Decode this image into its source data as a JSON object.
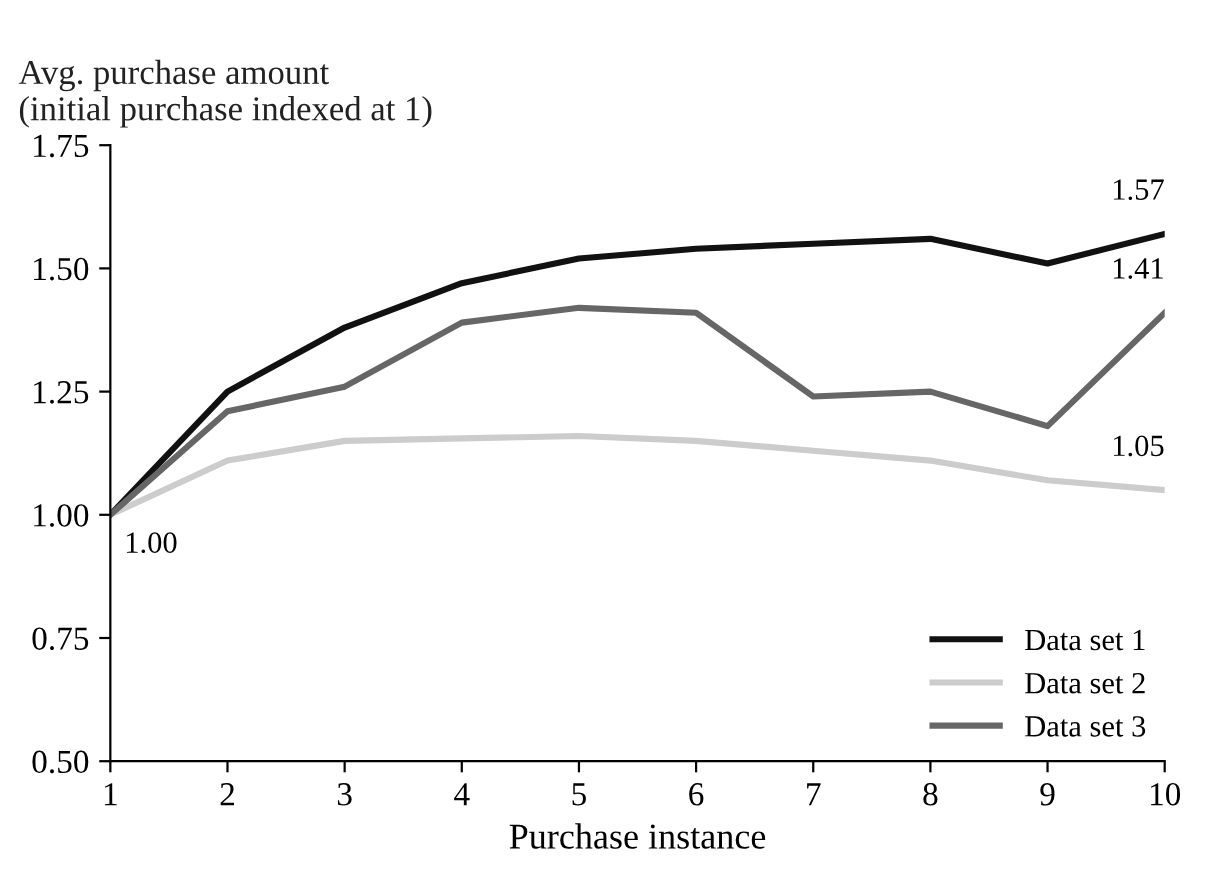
{
  "chart_data": {
    "type": "line",
    "ylabel": "Avg. purchase amount\n(initial purchase indexed at 1)",
    "xlabel": "Purchase instance",
    "x": [
      1,
      2,
      3,
      4,
      5,
      6,
      7,
      8,
      9,
      10
    ],
    "series": [
      {
        "name": "Data set 1",
        "color": "#111111",
        "values": [
          1.0,
          1.25,
          1.38,
          1.47,
          1.52,
          1.54,
          1.55,
          1.56,
          1.51,
          1.57
        ],
        "value_labels": [
          "1.00",
          null,
          null,
          null,
          null,
          null,
          null,
          null,
          null,
          "1.57"
        ]
      },
      {
        "name": "Data set 2",
        "color": "#cccccc",
        "values": [
          1.0,
          1.11,
          1.15,
          1.155,
          1.16,
          1.15,
          1.13,
          1.11,
          1.07,
          1.05
        ],
        "value_labels": [
          null,
          null,
          null,
          null,
          null,
          null,
          null,
          null,
          null,
          "1.05"
        ]
      },
      {
        "name": "Data set 3",
        "color": "#666666",
        "values": [
          1.0,
          1.21,
          1.26,
          1.39,
          1.42,
          1.41,
          1.24,
          1.25,
          1.18,
          1.41
        ],
        "value_labels": [
          null,
          null,
          null,
          null,
          null,
          null,
          null,
          null,
          null,
          "1.41"
        ]
      }
    ],
    "xlim": [
      1,
      10
    ],
    "xticks": [
      1,
      2,
      3,
      4,
      5,
      6,
      7,
      8,
      9,
      10
    ],
    "ylim": [
      0.5,
      1.75
    ],
    "yticks": [
      {
        "value": 0.5,
        "label": "0.50"
      },
      {
        "value": 0.75,
        "label": "0.75"
      },
      {
        "value": 1.0,
        "label": "1.00"
      },
      {
        "value": 1.25,
        "label": "1.25"
      },
      {
        "value": 1.5,
        "label": "1.50"
      },
      {
        "value": 1.75,
        "label": "1.75"
      }
    ],
    "grid": false,
    "legend": "bottom right",
    "line_style": "solid",
    "marker": "none"
  }
}
